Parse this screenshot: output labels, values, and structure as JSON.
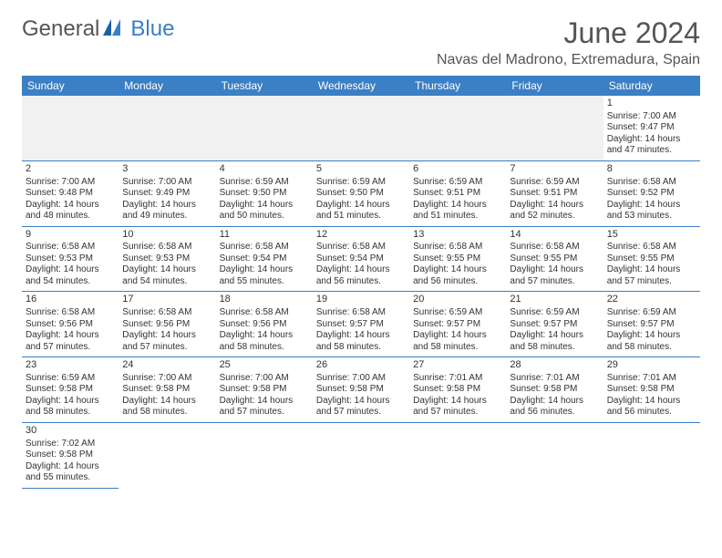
{
  "logo": {
    "text1": "General",
    "text2": "Blue"
  },
  "title": "June 2024",
  "location": "Navas del Madrono, Extremadura, Spain",
  "headers": [
    "Sunday",
    "Monday",
    "Tuesday",
    "Wednesday",
    "Thursday",
    "Friday",
    "Saturday"
  ],
  "colors": {
    "header_bg": "#3b7fc4",
    "header_fg": "#ffffff",
    "border": "#3b7fc4",
    "empty_bg": "#f1f1f1",
    "text": "#333333",
    "title": "#555555"
  },
  "fonts": {
    "title_size": 32,
    "location_size": 16,
    "header_size": 12,
    "cell_size": 10,
    "daynum_size": 11
  },
  "startDayIndex": 6,
  "daysInMonth": 30,
  "days": {
    "1": {
      "sunrise": "7:00 AM",
      "sunset": "9:47 PM",
      "dl_h": 14,
      "dl_m": 47
    },
    "2": {
      "sunrise": "7:00 AM",
      "sunset": "9:48 PM",
      "dl_h": 14,
      "dl_m": 48
    },
    "3": {
      "sunrise": "7:00 AM",
      "sunset": "9:49 PM",
      "dl_h": 14,
      "dl_m": 49
    },
    "4": {
      "sunrise": "6:59 AM",
      "sunset": "9:50 PM",
      "dl_h": 14,
      "dl_m": 50
    },
    "5": {
      "sunrise": "6:59 AM",
      "sunset": "9:50 PM",
      "dl_h": 14,
      "dl_m": 51
    },
    "6": {
      "sunrise": "6:59 AM",
      "sunset": "9:51 PM",
      "dl_h": 14,
      "dl_m": 51
    },
    "7": {
      "sunrise": "6:59 AM",
      "sunset": "9:51 PM",
      "dl_h": 14,
      "dl_m": 52
    },
    "8": {
      "sunrise": "6:58 AM",
      "sunset": "9:52 PM",
      "dl_h": 14,
      "dl_m": 53
    },
    "9": {
      "sunrise": "6:58 AM",
      "sunset": "9:53 PM",
      "dl_h": 14,
      "dl_m": 54
    },
    "10": {
      "sunrise": "6:58 AM",
      "sunset": "9:53 PM",
      "dl_h": 14,
      "dl_m": 54
    },
    "11": {
      "sunrise": "6:58 AM",
      "sunset": "9:54 PM",
      "dl_h": 14,
      "dl_m": 55
    },
    "12": {
      "sunrise": "6:58 AM",
      "sunset": "9:54 PM",
      "dl_h": 14,
      "dl_m": 56
    },
    "13": {
      "sunrise": "6:58 AM",
      "sunset": "9:55 PM",
      "dl_h": 14,
      "dl_m": 56
    },
    "14": {
      "sunrise": "6:58 AM",
      "sunset": "9:55 PM",
      "dl_h": 14,
      "dl_m": 57
    },
    "15": {
      "sunrise": "6:58 AM",
      "sunset": "9:55 PM",
      "dl_h": 14,
      "dl_m": 57
    },
    "16": {
      "sunrise": "6:58 AM",
      "sunset": "9:56 PM",
      "dl_h": 14,
      "dl_m": 57
    },
    "17": {
      "sunrise": "6:58 AM",
      "sunset": "9:56 PM",
      "dl_h": 14,
      "dl_m": 57
    },
    "18": {
      "sunrise": "6:58 AM",
      "sunset": "9:56 PM",
      "dl_h": 14,
      "dl_m": 58
    },
    "19": {
      "sunrise": "6:58 AM",
      "sunset": "9:57 PM",
      "dl_h": 14,
      "dl_m": 58
    },
    "20": {
      "sunrise": "6:59 AM",
      "sunset": "9:57 PM",
      "dl_h": 14,
      "dl_m": 58
    },
    "21": {
      "sunrise": "6:59 AM",
      "sunset": "9:57 PM",
      "dl_h": 14,
      "dl_m": 58
    },
    "22": {
      "sunrise": "6:59 AM",
      "sunset": "9:57 PM",
      "dl_h": 14,
      "dl_m": 58
    },
    "23": {
      "sunrise": "6:59 AM",
      "sunset": "9:58 PM",
      "dl_h": 14,
      "dl_m": 58
    },
    "24": {
      "sunrise": "7:00 AM",
      "sunset": "9:58 PM",
      "dl_h": 14,
      "dl_m": 58
    },
    "25": {
      "sunrise": "7:00 AM",
      "sunset": "9:58 PM",
      "dl_h": 14,
      "dl_m": 57
    },
    "26": {
      "sunrise": "7:00 AM",
      "sunset": "9:58 PM",
      "dl_h": 14,
      "dl_m": 57
    },
    "27": {
      "sunrise": "7:01 AM",
      "sunset": "9:58 PM",
      "dl_h": 14,
      "dl_m": 57
    },
    "28": {
      "sunrise": "7:01 AM",
      "sunset": "9:58 PM",
      "dl_h": 14,
      "dl_m": 56
    },
    "29": {
      "sunrise": "7:01 AM",
      "sunset": "9:58 PM",
      "dl_h": 14,
      "dl_m": 56
    },
    "30": {
      "sunrise": "7:02 AM",
      "sunset": "9:58 PM",
      "dl_h": 14,
      "dl_m": 55
    }
  },
  "labels": {
    "sunrise": "Sunrise:",
    "sunset": "Sunset:",
    "daylight_prefix": "Daylight:",
    "hours_word": "hours",
    "and_word": "and",
    "minutes_word": "minutes."
  }
}
